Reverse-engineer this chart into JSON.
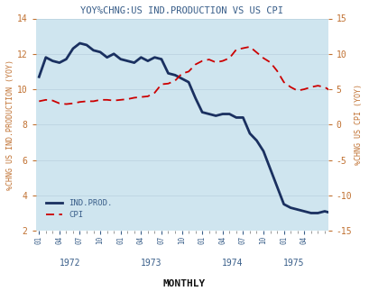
{
  "title": "YOY%CHNG:US IND.PRODUCTION VS US CPI",
  "xlabel": "MONTHLY",
  "ylabel_left": "%CHNG US IND.PRODUCTION (YOY)",
  "ylabel_right": "%CHNG US CPI (YOY)",
  "background_color": "#cfe5ef",
  "fig_background": "#ffffff",
  "title_color": "#3a5f8a",
  "label_color": "#c07030",
  "tick_color": "#3a5f8a",
  "ind_prod_color": "#1a3060",
  "cpi_color": "#cc0000",
  "ylim_left": [
    2,
    14
  ],
  "ylim_right": [
    -15,
    15
  ],
  "yticks_left": [
    2,
    4,
    6,
    8,
    10,
    12,
    14
  ],
  "yticks_right": [
    -15,
    -10,
    -5,
    0,
    5,
    10,
    15
  ],
  "x_tick_labels": [
    "01",
    "04",
    "07",
    "10",
    "01",
    "04",
    "07",
    "10",
    "01",
    "04",
    "07",
    "10",
    "01",
    "04"
  ],
  "x_year_labels": [
    "1972",
    "1973",
    "1974",
    "1975"
  ],
  "ind_prod_y": [
    10.7,
    11.8,
    11.6,
    11.5,
    11.7,
    12.3,
    12.6,
    12.5,
    12.2,
    12.1,
    11.8,
    12.0,
    11.7,
    11.6,
    11.5,
    11.8,
    11.6,
    11.8,
    11.7,
    10.9,
    10.8,
    10.6,
    10.4,
    9.5,
    8.7,
    8.6,
    8.5,
    8.6,
    8.6,
    8.4,
    8.4,
    7.5,
    7.1,
    6.5,
    5.5,
    4.5,
    3.5,
    3.3,
    3.2,
    3.1,
    3.0,
    3.0,
    3.1,
    3.0
  ],
  "cpi_y": [
    3.3,
    3.5,
    3.4,
    3.0,
    2.9,
    3.0,
    3.2,
    3.3,
    3.3,
    3.5,
    3.5,
    3.4,
    3.5,
    3.6,
    3.8,
    3.9,
    4.0,
    4.5,
    5.7,
    5.8,
    6.2,
    7.2,
    7.5,
    8.5,
    9.0,
    9.2,
    8.8,
    9.0,
    9.4,
    10.6,
    10.8,
    11.0,
    10.2,
    9.4,
    8.8,
    7.6,
    6.0,
    5.3,
    4.8,
    5.0,
    5.3,
    5.5,
    5.3,
    4.7
  ]
}
